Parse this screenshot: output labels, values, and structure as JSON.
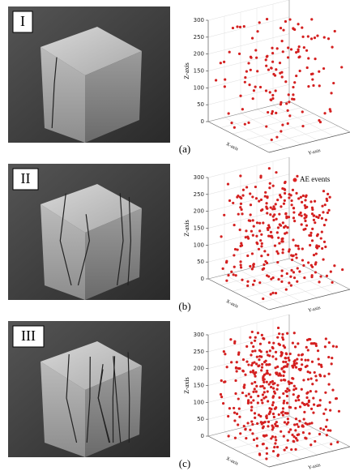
{
  "panels": [
    {
      "numeral": "I",
      "label": "(a)",
      "z_axis": {
        "title": "Z-axis",
        "ticks": [
          0,
          50,
          100,
          150,
          200,
          250,
          300
        ]
      },
      "x_axis_title": "X-axis",
      "y_axis_title": "Y-axis"
    },
    {
      "numeral": "II",
      "label": "(b)",
      "z_axis": {
        "title": "Z-axis",
        "ticks": [
          0,
          50,
          100,
          150,
          200,
          250,
          300
        ]
      },
      "x_axis_title": "X-axis",
      "y_axis_title": "Y-axis"
    },
    {
      "numeral": "III",
      "label": "(c)",
      "z_axis": {
        "title": "Z-axis",
        "ticks": [
          0,
          50,
          100,
          150,
          200,
          250,
          300
        ]
      },
      "x_axis_title": "X-axis",
      "y_axis_title": "Y-axis"
    }
  ],
  "legend": "AE events"
}
